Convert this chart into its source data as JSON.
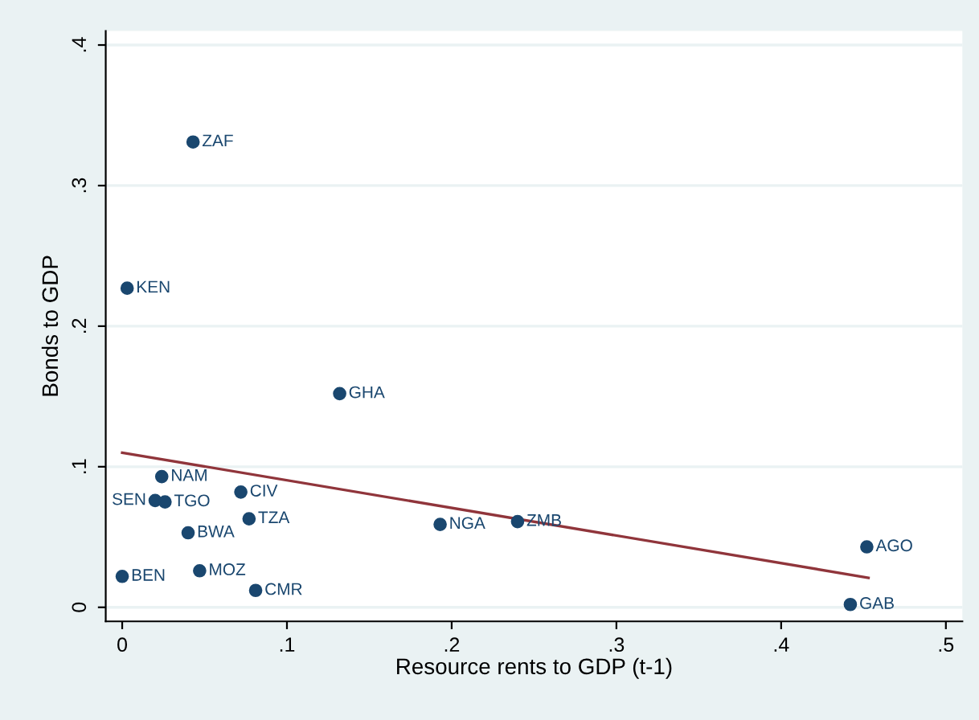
{
  "chart_data": {
    "type": "scatter",
    "xlabel": "Resource rents to GDP (t-1)",
    "ylabel": "Bonds to GDP",
    "x": [
      0.043,
      0.003,
      0.132,
      0.024,
      0.02,
      0.026,
      0.072,
      0.077,
      0.04,
      0.0,
      0.047,
      0.081,
      0.193,
      0.24,
      0.452,
      0.442
    ],
    "series": [
      {
        "type": "scatter",
        "color": "#1a476f",
        "marker": "circle",
        "values": [
          0.331,
          0.227,
          0.152,
          0.093,
          0.076,
          0.075,
          0.082,
          0.063,
          0.053,
          0.022,
          0.026,
          0.012,
          0.059,
          0.061,
          0.043,
          0.002
        ]
      },
      {
        "type": "line",
        "color": "#90353b",
        "x": [
          0.0,
          0.453
        ],
        "values": [
          0.11,
          0.021
        ]
      }
    ],
    "annotations": [
      {
        "text": "ZAF",
        "x": 0.043,
        "y": 0.331
      },
      {
        "text": "KEN",
        "x": 0.003,
        "y": 0.227
      },
      {
        "text": "GHA",
        "x": 0.132,
        "y": 0.152
      },
      {
        "text": "NAM",
        "x": 0.024,
        "y": 0.093
      },
      {
        "text": "SEN",
        "x": 0.02,
        "y": 0.076
      },
      {
        "text": "TGO",
        "x": 0.026,
        "y": 0.075
      },
      {
        "text": "CIV",
        "x": 0.072,
        "y": 0.082
      },
      {
        "text": "TZA",
        "x": 0.077,
        "y": 0.063
      },
      {
        "text": "BWA",
        "x": 0.04,
        "y": 0.053
      },
      {
        "text": "BEN",
        "x": 0.0,
        "y": 0.022
      },
      {
        "text": "MOZ",
        "x": 0.047,
        "y": 0.026
      },
      {
        "text": "CMR",
        "x": 0.081,
        "y": 0.012
      },
      {
        "text": "NGA",
        "x": 0.193,
        "y": 0.059
      },
      {
        "text": "ZMB",
        "x": 0.24,
        "y": 0.061
      },
      {
        "text": "AGO",
        "x": 0.452,
        "y": 0.043
      },
      {
        "text": "GAB",
        "x": 0.442,
        "y": 0.002
      }
    ],
    "xlim": [
      -0.01,
      0.51
    ],
    "ylim": [
      -0.01,
      0.41
    ],
    "xticks": [
      {
        "value": 0,
        "label": "0"
      },
      {
        "value": 0.1,
        "label": ".1"
      },
      {
        "value": 0.2,
        "label": ".2"
      },
      {
        "value": 0.3,
        "label": ".3"
      },
      {
        "value": 0.4,
        "label": ".4"
      },
      {
        "value": 0.5,
        "label": ".5"
      }
    ],
    "yticks": [
      {
        "value": 0,
        "label": "0"
      },
      {
        "value": 0.1,
        "label": ".1"
      },
      {
        "value": 0.2,
        "label": ".2"
      },
      {
        "value": 0.3,
        "label": ".3"
      },
      {
        "value": 0.4,
        "label": ".4"
      }
    ],
    "grid": "y",
    "legend": false
  }
}
